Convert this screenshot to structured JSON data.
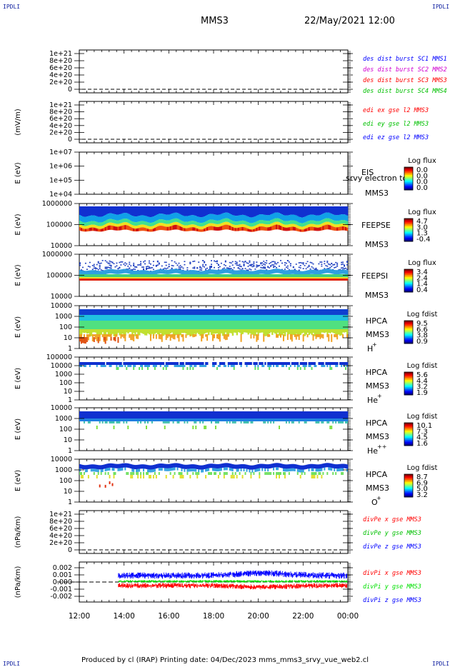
{
  "header": {
    "logo": "IPDLI",
    "spacecraft": "MMS3",
    "datetime": "22/May/2021 12:00"
  },
  "footer": {
    "text": "Produced by cl (IRAP)   Printing date: 04/Dec/2023   mms_mms3_srvy_vue_web2.cl"
  },
  "chart_data": [
    {
      "type": "line",
      "panel": 1,
      "ylabel": "",
      "yticks": [
        "0",
        "2e+20",
        "4e+20",
        "6e+20",
        "8e+20",
        "1e+21"
      ],
      "reference_line": 0,
      "series": [
        {
          "name": "des dist burst SC1 MMS1",
          "color": "#0000ff"
        },
        {
          "name": "des dist burst SC2 MMS2",
          "color": "#d000d0"
        },
        {
          "name": "des dist burst SC3 MMS3",
          "color": "#ff0000"
        },
        {
          "name": "des dist burst SC4 MMS4",
          "color": "#00c000"
        }
      ]
    },
    {
      "type": "line",
      "panel": 2,
      "ylabel": "(mV/m)",
      "yticks": [
        "0",
        "2e+20",
        "4e+20",
        "6e+20",
        "8e+20",
        "1e+21"
      ],
      "reference_line": 0,
      "series": [
        {
          "name": "edi ex gse l2 MMS3",
          "color": "#ff0000"
        },
        {
          "name": "edi ey gse l2 MMS3",
          "color": "#00c000"
        },
        {
          "name": "edi ez gse l2 MMS3",
          "color": "#0000ff"
        }
      ]
    },
    {
      "type": "heatmap",
      "panel": 3,
      "ylabel": "E (eV)",
      "yscale": "log",
      "yticks": [
        "1e+04",
        "1e+05",
        "1e+06",
        "1e+07"
      ],
      "instrument": [
        "EIS",
        "MMS3"
      ],
      "overlay_label": "srvy electron to",
      "colorbar": {
        "title": "Log flux",
        "ticks": [
          "0.0",
          "0.0",
          "0.0",
          "0.0"
        ]
      }
    },
    {
      "type": "heatmap",
      "panel": 4,
      "ylabel": "E (eV)",
      "yscale": "log",
      "yticks": [
        "10000",
        "100000",
        "1000000"
      ],
      "instrument": [
        "FEEPSE",
        "MMS3"
      ],
      "colorbar": {
        "title": "Log flux",
        "ticks": [
          "4.7",
          "3.0",
          "1.3",
          "-0.4"
        ]
      }
    },
    {
      "type": "heatmap",
      "panel": 5,
      "ylabel": "E (eV)",
      "yscale": "log",
      "yticks": [
        "10000",
        "100000",
        "1000000"
      ],
      "instrument": [
        "FEEPSI",
        "MMS3"
      ],
      "colorbar": {
        "title": "Log flux",
        "ticks": [
          "3.4",
          "2.4",
          "1.4",
          "0.4"
        ]
      }
    },
    {
      "type": "heatmap",
      "panel": 6,
      "ylabel": "E (eV)",
      "yscale": "log",
      "yticks": [
        "1",
        "10",
        "100",
        "1000",
        "10000"
      ],
      "instrument": [
        "HPCA",
        "MMS3",
        "H",
        "+"
      ],
      "colorbar": {
        "title": "Log fdist",
        "ticks": [
          "9.5",
          "6.6",
          "3.8",
          "0.9"
        ]
      }
    },
    {
      "type": "heatmap",
      "panel": 7,
      "ylabel": "E (eV)",
      "yscale": "log",
      "yticks": [
        "1",
        "10",
        "100",
        "1000",
        "10000",
        "100000"
      ],
      "instrument": [
        "HPCA",
        "MMS3",
        "He",
        "+"
      ],
      "colorbar": {
        "title": "Log fdist",
        "ticks": [
          "5.6",
          "4.4",
          "3.2",
          "1.9"
        ]
      }
    },
    {
      "type": "heatmap",
      "panel": 8,
      "ylabel": "E (eV)",
      "yscale": "log",
      "yticks": [
        "1",
        "10",
        "100",
        "1000",
        "10000"
      ],
      "instrument": [
        "HPCA",
        "MMS3",
        "He",
        "++"
      ],
      "colorbar": {
        "title": "Log fdist",
        "ticks": [
          "10.1",
          "7.3",
          "4.5",
          "1.6"
        ]
      }
    },
    {
      "type": "heatmap",
      "panel": 9,
      "ylabel": "E (eV)",
      "yscale": "log",
      "yticks": [
        "1",
        "10",
        "100",
        "1000",
        "10000"
      ],
      "instrument": [
        "HPCA",
        "MMS3",
        "O",
        "+"
      ],
      "colorbar": {
        "title": "Log fdist",
        "ticks": [
          "8.7",
          "6.9",
          "5.0",
          "3.2"
        ]
      }
    },
    {
      "type": "line",
      "panel": 10,
      "ylabel": "(nPa/km)",
      "yticks": [
        "0",
        "2e+20",
        "4e+20",
        "6e+20",
        "8e+20",
        "1e+21"
      ],
      "reference_line": 0,
      "series": [
        {
          "name": "divPe x gse MMS3",
          "color": "#ff0000"
        },
        {
          "name": "divPe y gse MMS3",
          "color": "#00c000"
        },
        {
          "name": "divPe z gse MMS3",
          "color": "#0000ff"
        }
      ]
    },
    {
      "type": "line",
      "panel": 11,
      "ylabel": "(nPa/km)",
      "ylim": [
        -0.0028,
        0.0028
      ],
      "yticks": [
        "-0.002",
        "-0.001",
        "0.000",
        "0.001",
        "0.002"
      ],
      "ytick_values": [
        -0.002,
        -0.001,
        0.0,
        0.001,
        0.002
      ],
      "reference_line": 0,
      "data_start": "13:45",
      "series": [
        {
          "name": "divPi x gse MMS3",
          "color": "#ff0000",
          "center": -0.0005,
          "spread": 0.0004
        },
        {
          "name": "divPi y gse MMS3",
          "color": "#00e000",
          "center": 0.0001,
          "spread": 0.0002
        },
        {
          "name": "divPi z gse MMS3",
          "color": "#0000ff",
          "center": 0.0009,
          "spread": 0.0005
        }
      ]
    }
  ],
  "xaxis": {
    "ticks": [
      "12:00",
      "14:00",
      "16:00",
      "18:00",
      "20:00",
      "22:00",
      "00:00"
    ]
  }
}
